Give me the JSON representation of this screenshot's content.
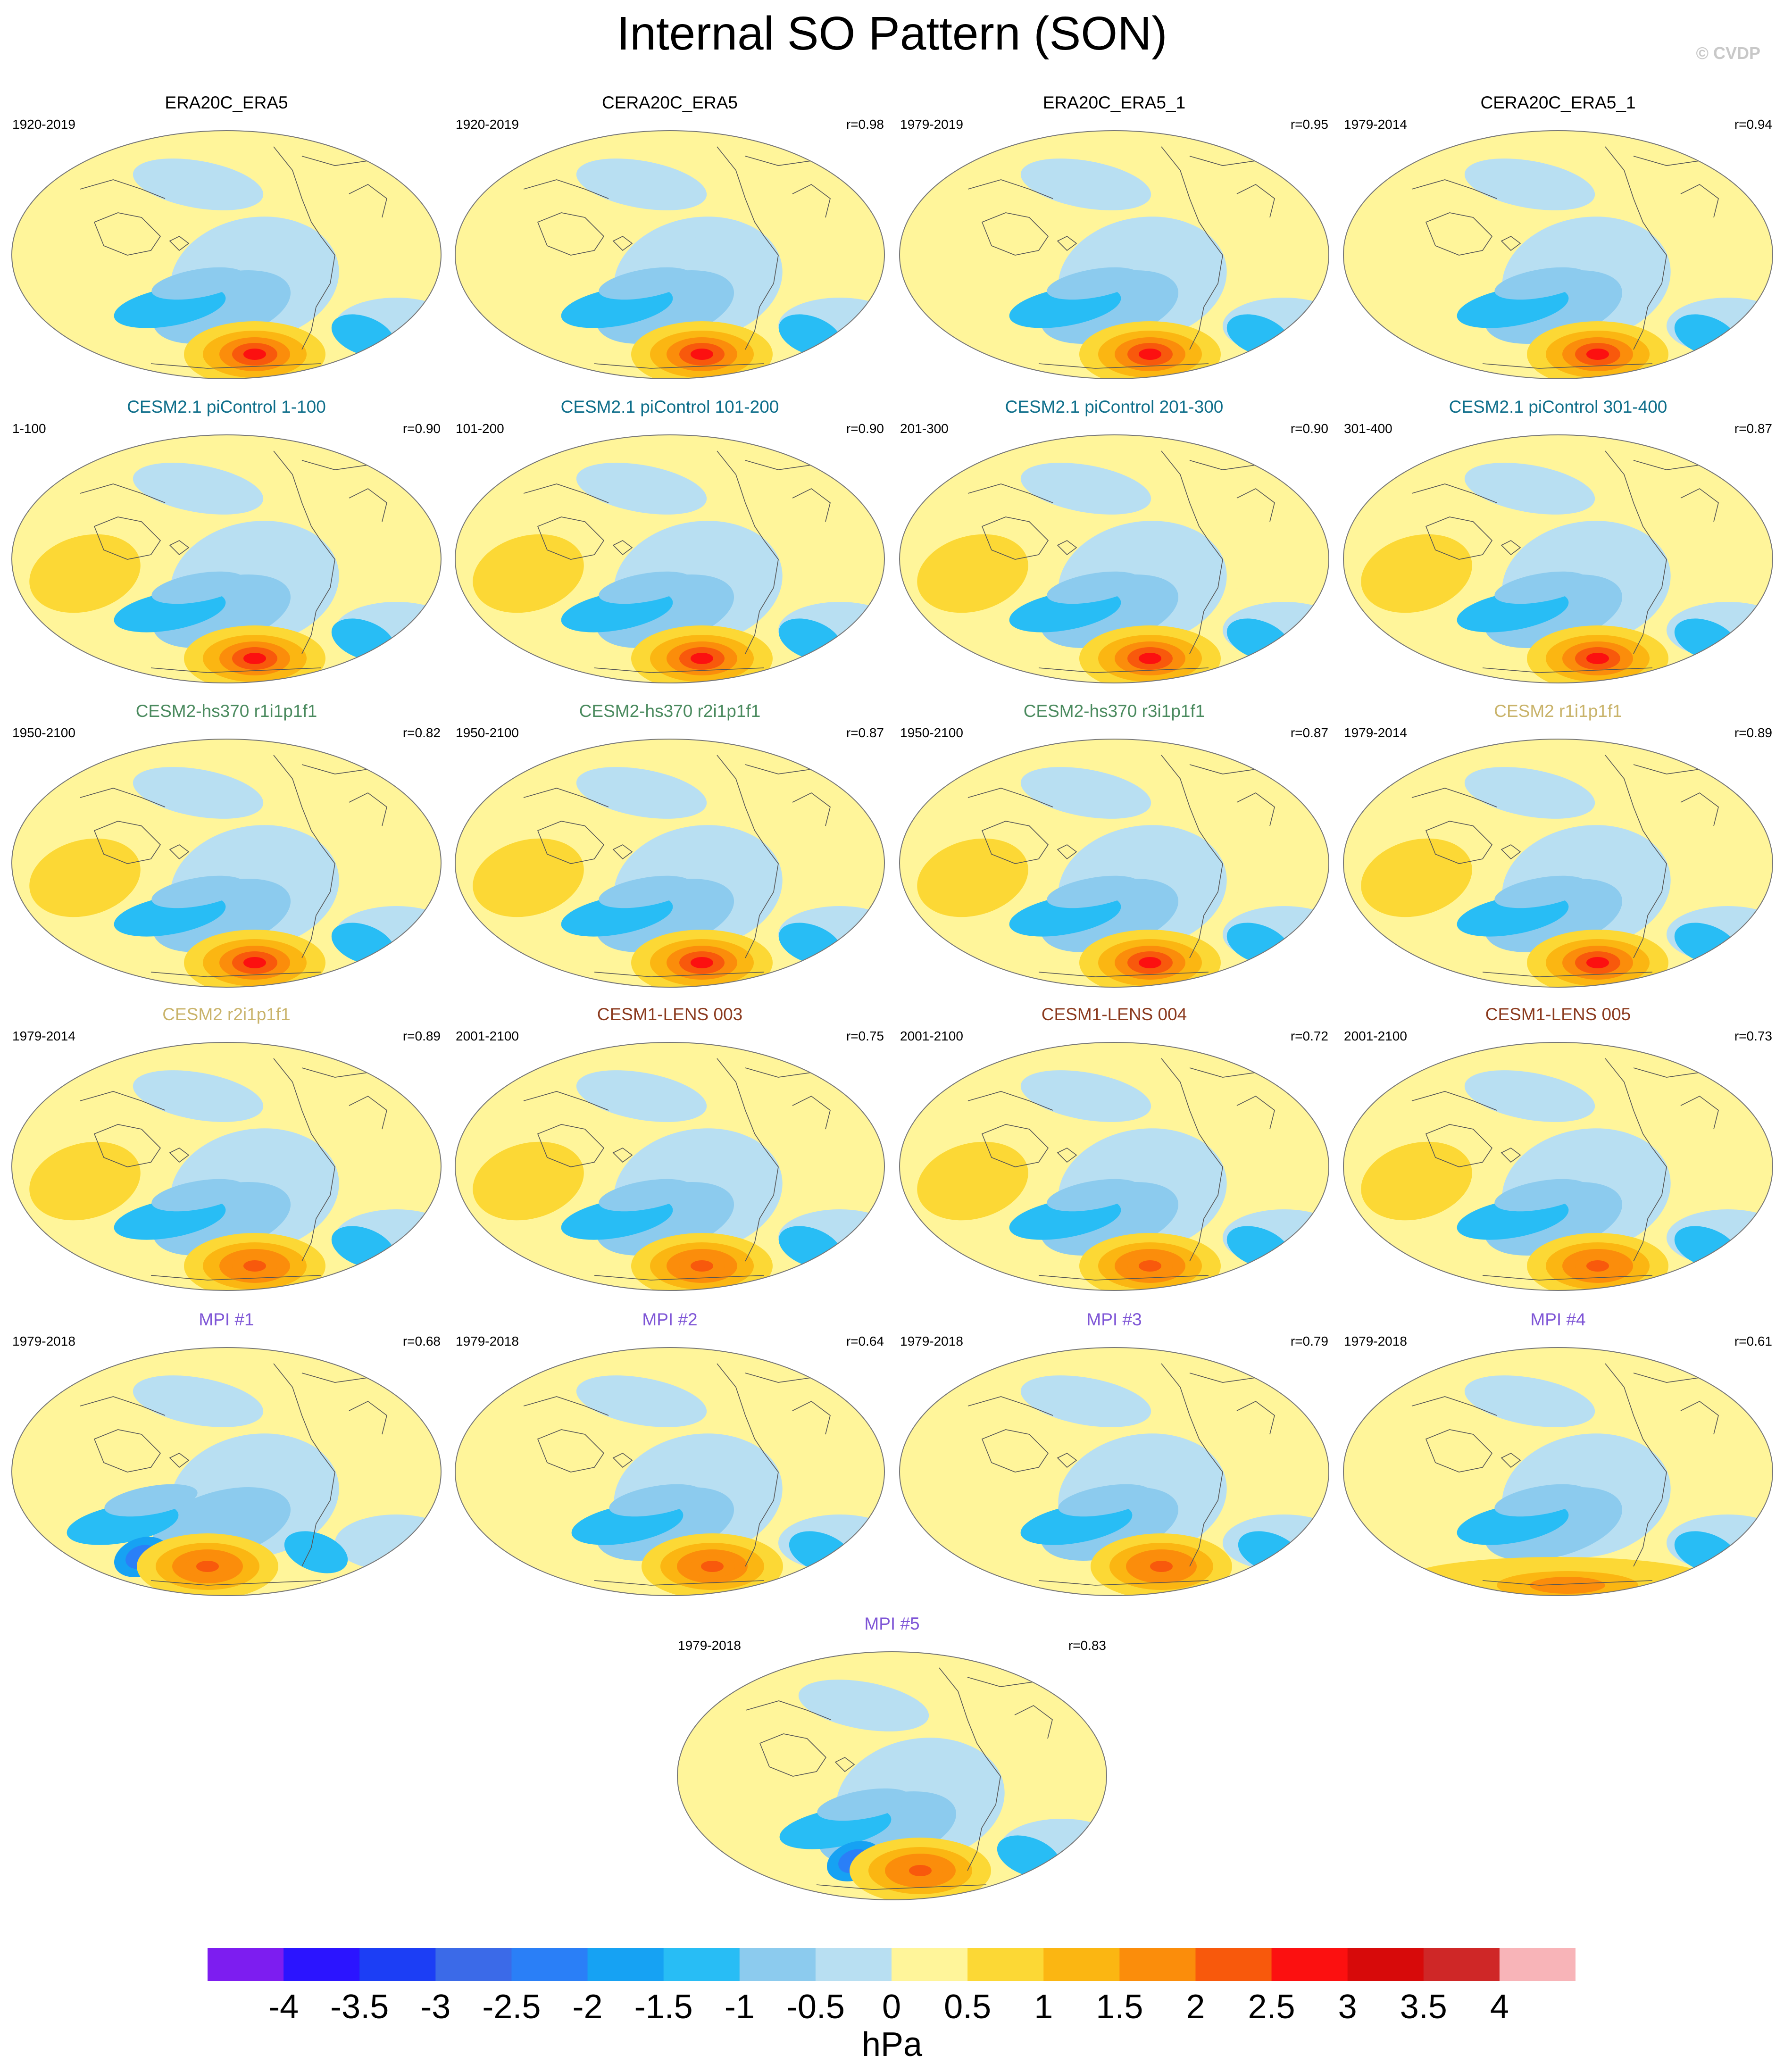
{
  "title": "Internal SO Pattern (SON)",
  "watermark": "© CVDP",
  "units": "hPa",
  "title_colors": {
    "black": "#000000",
    "teal": "#0e6e8a",
    "green": "#4a8a5e",
    "gold": "#c9b36a",
    "brown": "#8b3a1e",
    "purple": "#7e55d6"
  },
  "colorbar": {
    "colors": [
      "#7d1df0",
      "#2b14ff",
      "#1c3ef5",
      "#3b6ae8",
      "#2a7ff7",
      "#16a2f3",
      "#28bdf5",
      "#8ccbee",
      "#b8dff2",
      "#fff59a",
      "#fcd835",
      "#fbb612",
      "#fb8d0b",
      "#f8590c",
      "#fc1010",
      "#d70a0a",
      "#cf2727",
      "#f8b4b8"
    ],
    "labels": [
      "-4",
      "-3.5",
      "-3",
      "-2.5",
      "-2",
      "-1.5",
      "-1",
      "-0.5",
      "0",
      "0.5",
      "1",
      "1.5",
      "2",
      "2.5",
      "3",
      "3.5",
      "4"
    ]
  },
  "panels": [
    {
      "title": "ERA20C_ERA5",
      "color": "black",
      "period": "1920-2019",
      "r": ""
    },
    {
      "title": "CERA20C_ERA5",
      "color": "black",
      "period": "1920-2019",
      "r": "r=0.98"
    },
    {
      "title": "ERA20C_ERA5_1",
      "color": "black",
      "period": "1979-2019",
      "r": "r=0.95"
    },
    {
      "title": "CERA20C_ERA5_1",
      "color": "black",
      "period": "1979-2014",
      "r": "r=0.94"
    },
    {
      "title": "CESM2.1 piControl 1-100",
      "color": "teal",
      "period": "1-100",
      "r": "r=0.90"
    },
    {
      "title": "CESM2.1 piControl 101-200",
      "color": "teal",
      "period": "101-200",
      "r": "r=0.90"
    },
    {
      "title": "CESM2.1 piControl 201-300",
      "color": "teal",
      "period": "201-300",
      "r": "r=0.90"
    },
    {
      "title": "CESM2.1 piControl 301-400",
      "color": "teal",
      "period": "301-400",
      "r": "r=0.87"
    },
    {
      "title": "CESM2-hs370 r1i1p1f1",
      "color": "green",
      "period": "1950-2100",
      "r": "r=0.82"
    },
    {
      "title": "CESM2-hs370 r2i1p1f1",
      "color": "green",
      "period": "1950-2100",
      "r": "r=0.87"
    },
    {
      "title": "CESM2-hs370 r3i1p1f1",
      "color": "green",
      "period": "1950-2100",
      "r": "r=0.87"
    },
    {
      "title": "CESM2 r1i1p1f1",
      "color": "gold",
      "period": "1979-2014",
      "r": "r=0.89"
    },
    {
      "title": "CESM2 r2i1p1f1",
      "color": "gold",
      "period": "1979-2014",
      "r": "r=0.89"
    },
    {
      "title": "CESM1-LENS 003",
      "color": "brown",
      "period": "2001-2100",
      "r": "r=0.75"
    },
    {
      "title": "CESM1-LENS 004",
      "color": "brown",
      "period": "2001-2100",
      "r": "r=0.72"
    },
    {
      "title": "CESM1-LENS 005",
      "color": "brown",
      "period": "2001-2100",
      "r": "r=0.73"
    },
    {
      "title": "MPI #1",
      "color": "purple",
      "period": "1979-2018",
      "r": "r=0.68"
    },
    {
      "title": "MPI #2",
      "color": "purple",
      "period": "1979-2018",
      "r": "r=0.64"
    },
    {
      "title": "MPI #3",
      "color": "purple",
      "period": "1979-2018",
      "r": "r=0.79"
    },
    {
      "title": "MPI #4",
      "color": "purple",
      "period": "1979-2018",
      "r": "r=0.61"
    },
    {
      "title": "MPI #5",
      "color": "purple",
      "period": "1979-2018",
      "r": "r=0.83"
    }
  ]
}
